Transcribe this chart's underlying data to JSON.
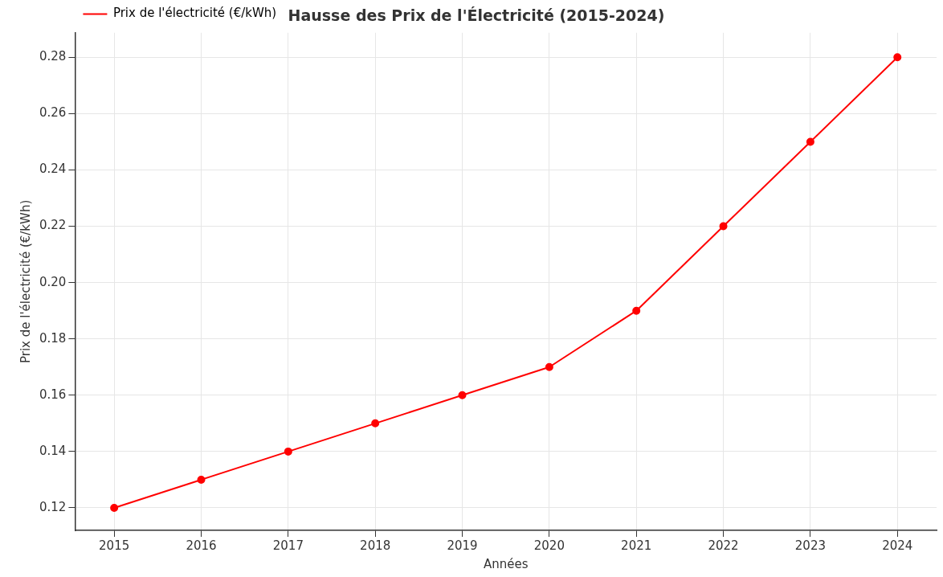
{
  "chart_data": {
    "type": "line",
    "title": "Hausse des Prix de l'Électricité (2015-2024)",
    "xlabel": "Années",
    "ylabel": "Prix de l'électricité (€/kWh)",
    "x": [
      2015,
      2016,
      2017,
      2018,
      2019,
      2020,
      2021,
      2022,
      2023,
      2024
    ],
    "series": [
      {
        "name": "Prix de l'électricité (€/kWh)",
        "color": "#ff0000",
        "values": [
          0.12,
          0.13,
          0.14,
          0.15,
          0.16,
          0.17,
          0.19,
          0.22,
          0.25,
          0.28
        ]
      }
    ],
    "xlim": [
      2014.55,
      2024.45
    ],
    "xticks": [
      2015,
      2016,
      2017,
      2018,
      2019,
      2020,
      2021,
      2022,
      2023,
      2024
    ],
    "ylim": [
      0.112,
      0.2887
    ],
    "yticks": [
      {
        "value": 0.12,
        "label": "0.12"
      },
      {
        "value": 0.14,
        "label": "0.14"
      },
      {
        "value": 0.16,
        "label": "0.16"
      },
      {
        "value": 0.18,
        "label": "0.18"
      },
      {
        "value": 0.2,
        "label": "0.20"
      },
      {
        "value": 0.22,
        "label": "0.22"
      },
      {
        "value": 0.24,
        "label": "0.24"
      },
      {
        "value": 0.26,
        "label": "0.26"
      },
      {
        "value": 0.28,
        "label": "0.28"
      }
    ],
    "grid": true,
    "legend": "top left",
    "marker": "circle",
    "line_style": "solid"
  }
}
